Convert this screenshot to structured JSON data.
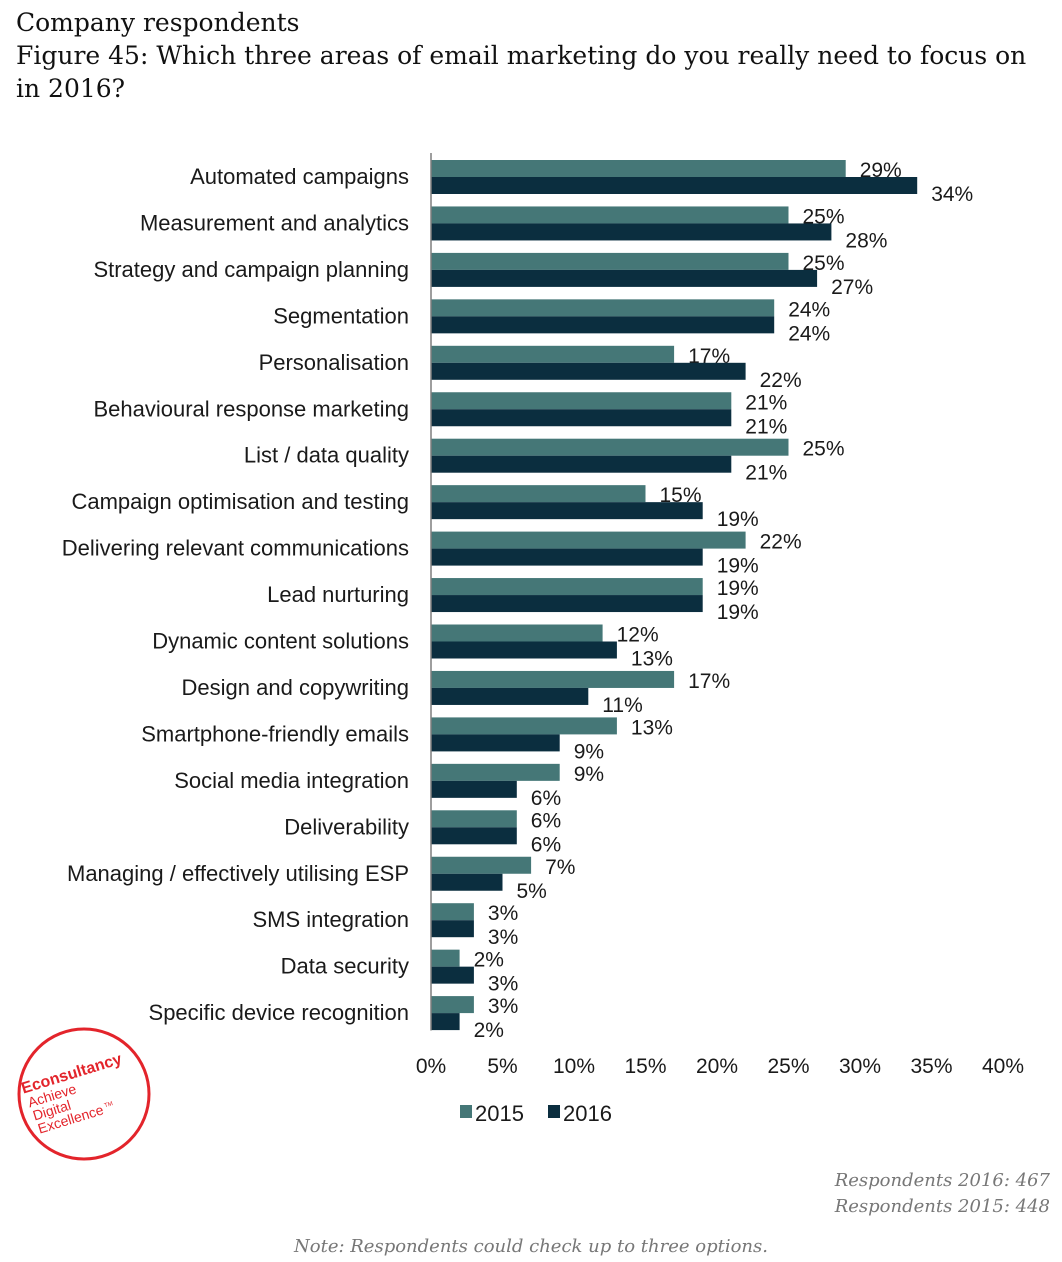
{
  "header": {
    "section": "Company respondents",
    "figure_title": "Figure 45: Which three areas of email marketing do you really need to focus on in 2016?"
  },
  "chart_data": {
    "type": "bar",
    "orientation": "horizontal",
    "categories": [
      "Automated campaigns",
      "Measurement and analytics",
      "Strategy and campaign planning",
      "Segmentation",
      "Personalisation",
      "Behavioural response marketing",
      "List / data quality",
      "Campaign optimisation and testing",
      "Delivering relevant communications",
      "Lead nurturing",
      "Dynamic content solutions",
      "Design and copywriting",
      "Smartphone-friendly emails",
      "Social media integration",
      "Deliverability",
      "Managing / effectively utilising ESP",
      "SMS integration",
      "Data security",
      "Specific device recognition"
    ],
    "series": [
      {
        "name": "2015",
        "color": "#457777",
        "values": [
          29,
          25,
          25,
          24,
          17,
          21,
          25,
          15,
          22,
          19,
          12,
          17,
          13,
          9,
          6,
          7,
          3,
          2,
          3
        ]
      },
      {
        "name": "2016",
        "color": "#0b2e3f",
        "values": [
          34,
          28,
          27,
          24,
          22,
          21,
          21,
          19,
          19,
          19,
          13,
          11,
          9,
          6,
          6,
          5,
          3,
          3,
          2
        ]
      }
    ],
    "value_suffix": "%",
    "xlim": [
      0,
      40
    ],
    "xticks": [
      "0%",
      "5%",
      "10%",
      "15%",
      "20%",
      "25%",
      "30%",
      "35%",
      "40%"
    ],
    "grid": false,
    "legend_position": "bottom"
  },
  "logo": {
    "text_line1": "Econsultancy",
    "text_line2": "Achieve",
    "text_line3": "Digital",
    "text_line4": "Excellence",
    "trademark": "TM",
    "color": "#e3242b"
  },
  "footer": {
    "respondents_2016": "Respondents 2016: 467",
    "respondents_2015": "Respondents 2015: 448",
    "note": "Note: Respondents could check up to three options."
  }
}
